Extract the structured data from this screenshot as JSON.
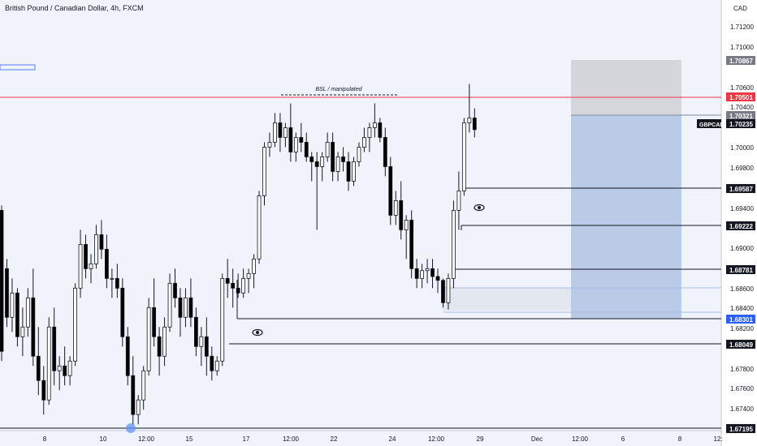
{
  "chart": {
    "title": "British Pound / Canadian Dollar, 4h, FXCM",
    "currency": "CAD",
    "symbol": "GBPCAD"
  },
  "price_axis": {
    "ticks": [
      "1.71200",
      "1.71000",
      "1.70600",
      "1.70400",
      "1.70000",
      "1.69800",
      "1.69400",
      "1.69000",
      "1.68600",
      "1.68400",
      "1.68200",
      "1.67800",
      "1.67600",
      "1.67400"
    ]
  },
  "time_axis": {
    "labels": [
      "8",
      "10",
      "12:00",
      "15",
      "17",
      "12:00",
      "22",
      "24",
      "12:00",
      "29",
      "Dec",
      "12:00",
      "6",
      "8",
      "12:"
    ]
  },
  "tags": {
    "price": "1.70235",
    "level_1": "1.70867",
    "level_2": "1.70501",
    "level_3": "1.70321",
    "level_4": "1.69587",
    "level_5": "1.69222",
    "level_6": "1.68781",
    "level_7": "1.68301",
    "level_8": "1.68049",
    "level_9": "1.67195"
  },
  "annotations": {
    "bsl_label": "BSL / manipulated"
  },
  "colors": {
    "background": "#f0f3fa",
    "candle_up": "#ffffff",
    "candle_down": "#000000",
    "resistance": "#f23645",
    "target_zone": "#b9cbe6",
    "stop_zone": "#d4d6dc",
    "accent": "#2962ff"
  },
  "icons": [
    "eye-icon",
    "eye-icon"
  ],
  "chart_data": {
    "type": "candlestick",
    "symbol": "GBPCAD",
    "timeframe": "4h",
    "source": "FXCM",
    "ylim": [
      1.6716,
      1.7148
    ],
    "levels": [
      1.70867,
      1.70501,
      1.70321,
      1.70235,
      1.69587,
      1.69222,
      1.68781,
      1.68301,
      1.68049,
      1.67195
    ],
    "position": {
      "type": "short",
      "entry": 1.70321,
      "stop": 1.70867,
      "target": 1.68301
    },
    "candles": [
      [
        1.694,
        1.6945,
        1.6785,
        1.6795
      ],
      [
        1.688,
        1.689,
        1.682,
        1.683
      ],
      [
        1.683,
        1.687,
        1.6815,
        1.6855
      ],
      [
        1.6855,
        1.686,
        1.68,
        1.681
      ],
      [
        1.681,
        1.684,
        1.679,
        1.682
      ],
      [
        1.682,
        1.686,
        1.681,
        1.685
      ],
      [
        1.685,
        1.688,
        1.678,
        1.679
      ],
      [
        1.679,
        1.682,
        1.675,
        1.6765
      ],
      [
        1.6765,
        1.678,
        1.673,
        1.6745
      ],
      [
        1.6745,
        1.683,
        1.674,
        1.682
      ],
      [
        1.682,
        1.684,
        1.676,
        1.6775
      ],
      [
        1.6775,
        1.679,
        1.6755,
        1.678
      ],
      [
        1.678,
        1.68,
        1.676,
        1.677
      ],
      [
        1.677,
        1.679,
        1.676,
        1.6785
      ],
      [
        1.6785,
        1.6865,
        1.678,
        1.686
      ],
      [
        1.686,
        1.692,
        1.685,
        1.6905
      ],
      [
        1.6905,
        1.6915,
        1.687,
        1.688
      ],
      [
        1.688,
        1.6895,
        1.6865,
        1.6885
      ],
      [
        1.6885,
        1.6925,
        1.688,
        1.6915
      ],
      [
        1.6915,
        1.693,
        1.689,
        1.69
      ],
      [
        1.69,
        1.6915,
        1.686,
        1.687
      ],
      [
        1.687,
        1.688,
        1.685,
        1.687
      ],
      [
        1.687,
        1.6885,
        1.685,
        1.686
      ],
      [
        1.686,
        1.687,
        1.68,
        1.681
      ],
      [
        1.681,
        1.682,
        1.676,
        1.677
      ],
      [
        1.677,
        1.679,
        1.672,
        1.673
      ],
      [
        1.673,
        1.675,
        1.672,
        1.6745
      ],
      [
        1.6745,
        1.678,
        1.6735,
        1.6775
      ],
      [
        1.6775,
        1.685,
        1.677,
        1.684
      ],
      [
        1.684,
        1.687,
        1.68,
        1.681
      ],
      [
        1.681,
        1.682,
        1.677,
        1.679
      ],
      [
        1.679,
        1.683,
        1.678,
        1.682
      ],
      [
        1.682,
        1.6875,
        1.6815,
        1.6865
      ],
      [
        1.6865,
        1.688,
        1.684,
        1.685
      ],
      [
        1.685,
        1.686,
        1.681,
        1.683
      ],
      [
        1.683,
        1.686,
        1.682,
        1.685
      ],
      [
        1.685,
        1.687,
        1.682,
        1.683
      ],
      [
        1.683,
        1.684,
        1.679,
        1.68
      ],
      [
        1.68,
        1.682,
        1.678,
        1.681
      ],
      [
        1.681,
        1.683,
        1.677,
        1.679
      ],
      [
        1.679,
        1.68,
        1.6765,
        1.6775
      ],
      [
        1.6775,
        1.679,
        1.677,
        1.6785
      ],
      [
        1.6785,
        1.6875,
        1.678,
        1.687
      ],
      [
        1.687,
        1.689,
        1.685,
        1.6865
      ],
      [
        1.6865,
        1.688,
        1.684,
        1.686
      ],
      [
        1.686,
        1.6875,
        1.685,
        1.6855
      ],
      [
        1.6855,
        1.688,
        1.685,
        1.687
      ],
      [
        1.687,
        1.688,
        1.6855,
        1.6875
      ],
      [
        1.6875,
        1.6895,
        1.686,
        1.689
      ],
      [
        1.689,
        1.696,
        1.6885,
        1.6955
      ],
      [
        1.6955,
        1.701,
        1.6945,
        1.7005
      ],
      [
        1.7005,
        1.702,
        1.6995,
        1.701
      ],
      [
        1.701,
        1.704,
        1.7005,
        1.703
      ],
      [
        1.703,
        1.704,
        1.7,
        1.7015
      ],
      [
        1.7015,
        1.703,
        1.7005,
        1.7025
      ],
      [
        1.7025,
        1.705,
        1.699,
        1.7
      ],
      [
        1.7,
        1.702,
        1.699,
        1.7015
      ],
      [
        1.7015,
        1.703,
        1.7,
        1.701
      ],
      [
        1.701,
        1.702,
        1.699,
        1.6995
      ],
      [
        1.6995,
        1.7,
        1.697,
        1.699
      ],
      [
        1.699,
        1.7,
        1.692,
        1.6985
      ],
      [
        1.6985,
        1.7,
        1.697,
        1.6995
      ],
      [
        1.6995,
        1.702,
        1.699,
        1.701
      ],
      [
        1.701,
        1.702,
        1.697,
        1.698
      ],
      [
        1.698,
        1.7,
        1.697,
        1.6995
      ],
      [
        1.6995,
        1.7005,
        1.698,
        1.699
      ],
      [
        1.699,
        1.7,
        1.696,
        1.697
      ],
      [
        1.697,
        1.6995,
        1.6965,
        1.699
      ],
      [
        1.699,
        1.701,
        1.6985,
        1.7005
      ],
      [
        1.7005,
        1.7025,
        1.7,
        1.7015
      ],
      [
        1.7015,
        1.703,
        1.7,
        1.7025
      ],
      [
        1.7025,
        1.705,
        1.7015,
        1.703
      ],
      [
        1.703,
        1.7035,
        1.701,
        1.7015
      ],
      [
        1.7015,
        1.7025,
        1.6975,
        1.6985
      ],
      [
        1.6985,
        1.6995,
        1.6925,
        1.6935
      ],
      [
        1.6935,
        1.696,
        1.6925,
        1.695
      ],
      [
        1.695,
        1.697,
        1.691,
        1.692
      ],
      [
        1.692,
        1.6935,
        1.689,
        1.693
      ],
      [
        1.693,
        1.694,
        1.687,
        1.688
      ],
      [
        1.688,
        1.689,
        1.686,
        1.687
      ],
      [
        1.687,
        1.6885,
        1.686,
        1.6878
      ],
      [
        1.6878,
        1.689,
        1.6865,
        1.688
      ],
      [
        1.688,
        1.689,
        1.686,
        1.6872
      ],
      [
        1.6872,
        1.688,
        1.6855,
        1.6868
      ],
      [
        1.6868,
        1.687,
        1.684,
        1.6845
      ],
      [
        1.6845,
        1.6875,
        1.6838,
        1.687
      ],
      [
        1.687,
        1.695,
        1.686,
        1.694
      ],
      [
        1.694,
        1.698,
        1.692,
        1.696
      ],
      [
        1.696,
        1.7035,
        1.6955,
        1.703
      ],
      [
        1.703,
        1.707,
        1.702,
        1.7035
      ],
      [
        1.7035,
        1.7045,
        1.7015,
        1.7023
      ]
    ]
  }
}
